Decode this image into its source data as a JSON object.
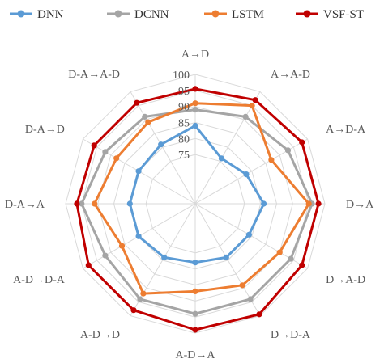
{
  "chart_data": {
    "type": "radar",
    "axes": [
      "A→D",
      "A→A-D",
      "A→D-A",
      "D→A",
      "D→A-D",
      "D→D-A",
      "A-D→A",
      "A-D→D",
      "A-D→D-A",
      "D-A→A",
      "D-A→D",
      "D-A→A-D"
    ],
    "rlim": [
      70,
      100
    ],
    "ticks": [
      "75",
      "80",
      "85",
      "90",
      "95",
      "100"
    ],
    "tick_values": [
      75,
      80,
      85,
      90,
      95,
      100
    ],
    "grid": true,
    "legend_position": "top",
    "series": [
      {
        "name": "DNN",
        "color": "#5B9BD5",
        "values": [
          84,
          76,
          78,
          81,
          79,
          79,
          78,
          79,
          80,
          80,
          80,
          81
        ]
      },
      {
        "name": "DCNN",
        "color": "#A5A5A5",
        "values": [
          89,
          91,
          93,
          96,
          94,
          94,
          94,
          94,
          92,
          95,
          92,
          91
        ]
      },
      {
        "name": "LSTM",
        "color": "#ED7D31",
        "values": [
          91,
          95,
          87,
          95,
          90,
          89,
          87,
          92,
          86,
          91,
          88,
          89
        ]
      },
      {
        "name": "VSF-ST",
        "color": "#C00000",
        "values": [
          95.5,
          97,
          98,
          98,
          98,
          99.5,
          99,
          98,
          98,
          96.5,
          96,
          96
        ]
      }
    ]
  }
}
